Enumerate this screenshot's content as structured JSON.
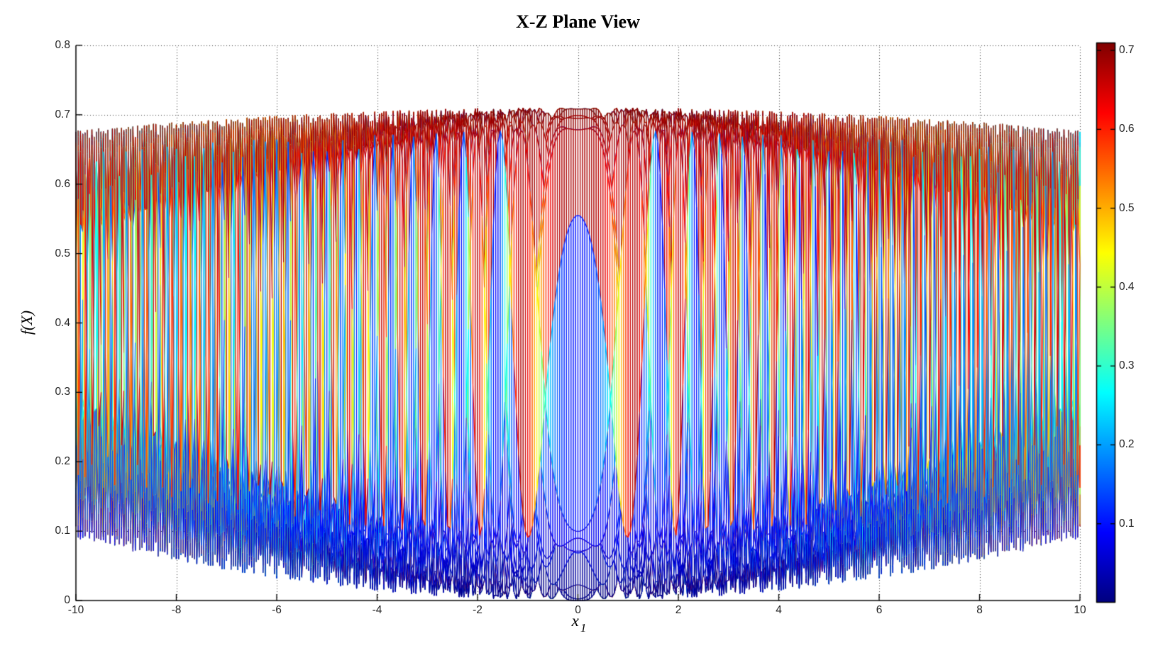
{
  "chart_data": {
    "type": "surface",
    "title": "X-Z Plane View",
    "view": "X-Z plane view (azimuth 0, elevation 0) of surface f(x1,x2), mesh edges colored by jet colormap, white faces",
    "xlabel_base": "x",
    "xlabel_sub": "1",
    "ylabel": "f(X)",
    "x_axis": {
      "min": -10,
      "max": 10,
      "tick_values": [
        -10,
        -8,
        -6,
        -4,
        -2,
        0,
        2,
        4,
        6,
        8,
        10
      ],
      "tick_labels": [
        "-10",
        "-8",
        "-6",
        "-4",
        "-2",
        "0",
        "2",
        "4",
        "6",
        "8",
        "10"
      ]
    },
    "z_axis": {
      "min": 0,
      "max": 0.8,
      "tick_values": [
        0,
        0.1,
        0.2,
        0.3,
        0.4,
        0.5,
        0.6,
        0.7,
        0.8
      ],
      "tick_labels": [
        "0",
        "0.1",
        "0.2",
        "0.3",
        "0.4",
        "0.5",
        "0.6",
        "0.7",
        "0.8"
      ]
    },
    "grid": {
      "style": "dotted",
      "color": "#333333"
    },
    "colorbar": {
      "colormap": "jet",
      "vmin": 0,
      "vmax": 0.71,
      "tick_values": [
        0.1,
        0.2,
        0.3,
        0.4,
        0.5,
        0.6,
        0.7
      ],
      "tick_labels": [
        "0.1",
        "0.2",
        "0.3",
        "0.4",
        "0.5",
        "0.6",
        "0.7"
      ]
    },
    "surface": {
      "description": "z = m(r) - a(r)*cos(c*r^2) with r^2 = x1^2 + x2^2, m=(top+bot)/2, a=(top-bot)/2 (radial chirp, oscillation densifies away from origin)",
      "envelope_top": {
        "c0": 0.71,
        "c2": -0.00033
      },
      "envelope_bottom": {
        "c0": 0.0,
        "c2": 0.0009
      },
      "chirp_c": 2.24,
      "x1_range": [
        -10,
        10
      ],
      "x2_range": [
        -10,
        10
      ],
      "n1": 440,
      "n2": 88,
      "z_top_center": 0.71,
      "z_top_edge": 0.675,
      "z_bottom_center": 0.0,
      "z_bottom_edge": 0.09
    },
    "background": "#ffffff",
    "axis_color": "#000000"
  }
}
